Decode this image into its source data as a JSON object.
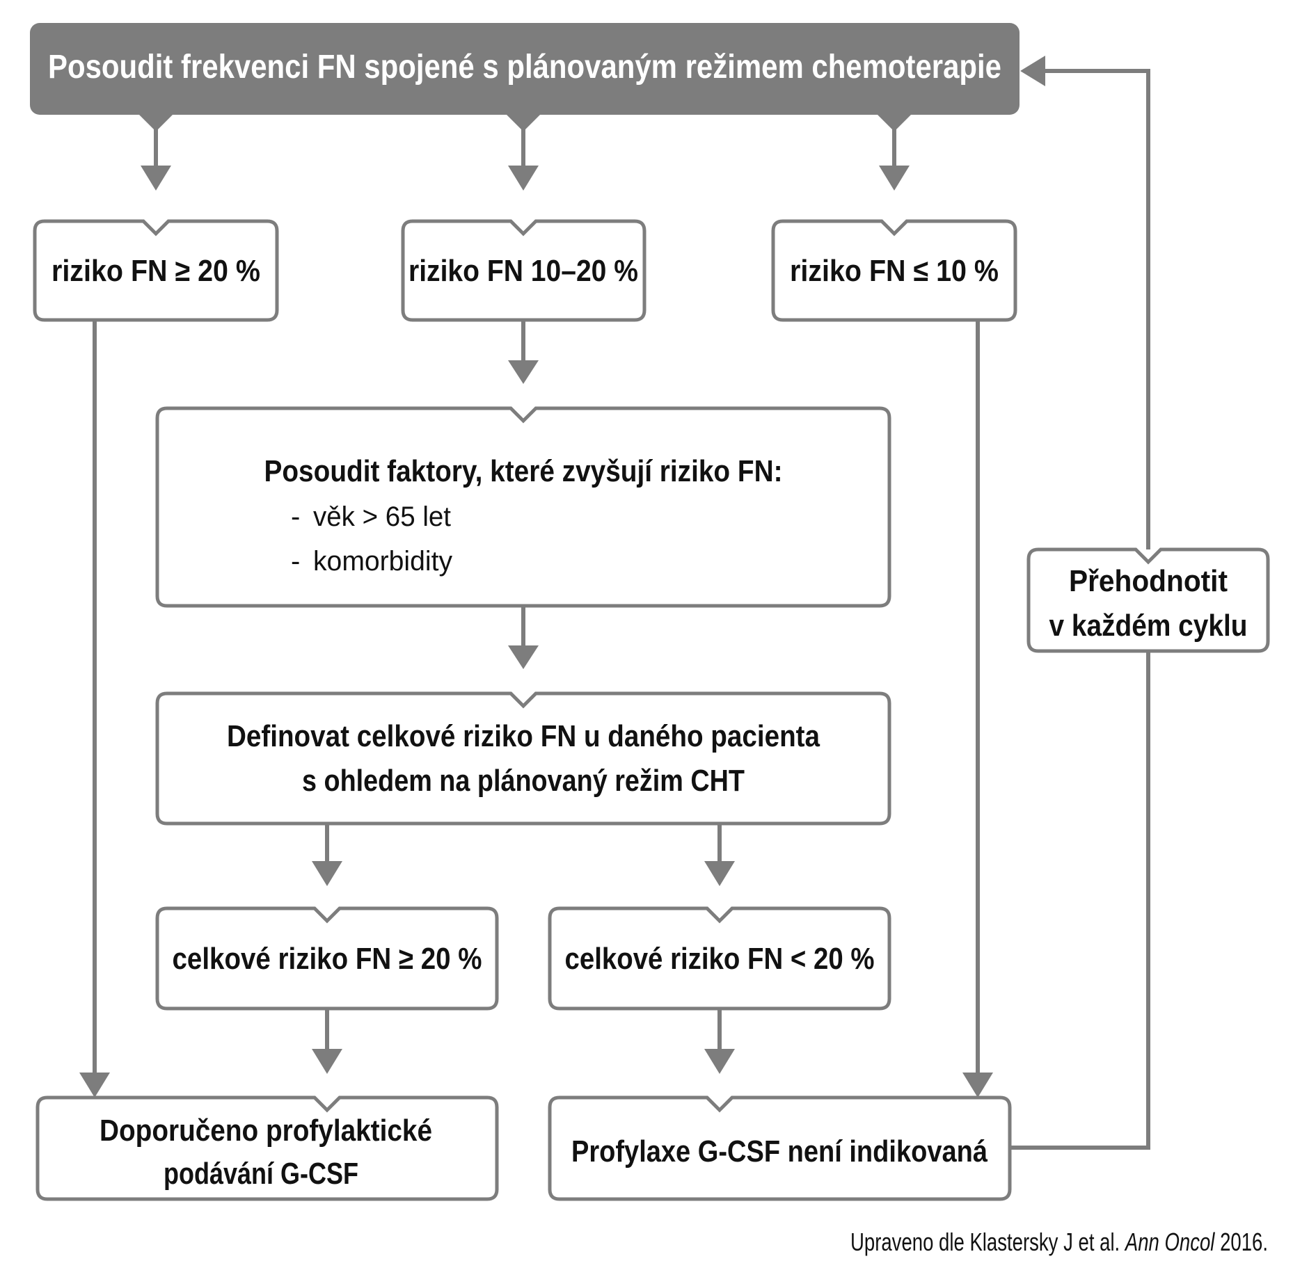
{
  "colors": {
    "line": "#7d7d7d",
    "header_bg": "#7d7d7d",
    "header_text": "#ffffff",
    "text": "#111111",
    "box_bg": "#ffffff"
  },
  "header": {
    "text": "Posoudit frekvenci FN spojené s plánovaným režimem chemoterapie"
  },
  "risk_boxes": {
    "high": "riziko FN ≥ 20 %",
    "mid": "riziko FN 10–20 %",
    "low": "riziko FN ≤ 10 %"
  },
  "factors": {
    "title": "Posoudit faktory, které zvyšují riziko FN:",
    "items": [
      "věk > 65 let",
      "komorbidity"
    ],
    "bullet": "-"
  },
  "define": {
    "line1": "Definovat celkové riziko FN u daného pacienta",
    "line2": "s ohledem na plánovaný režim CHT"
  },
  "overall": {
    "high": "celkové riziko FN ≥ 20 %",
    "low": "celkové riziko FN < 20 %"
  },
  "outcomes": {
    "recommended_line1": "Doporučeno profylaktické",
    "recommended_line2": "podávání G-CSF",
    "not_indicated": "Profylaxe G-CSF není indikovaná"
  },
  "reassess": {
    "line1": "Přehodnotit",
    "line2": "v každém cyklu"
  },
  "source": {
    "prefix": "Upraveno dle Klastersky J et al. ",
    "journal": "Ann Oncol",
    "suffix": " 2016."
  }
}
